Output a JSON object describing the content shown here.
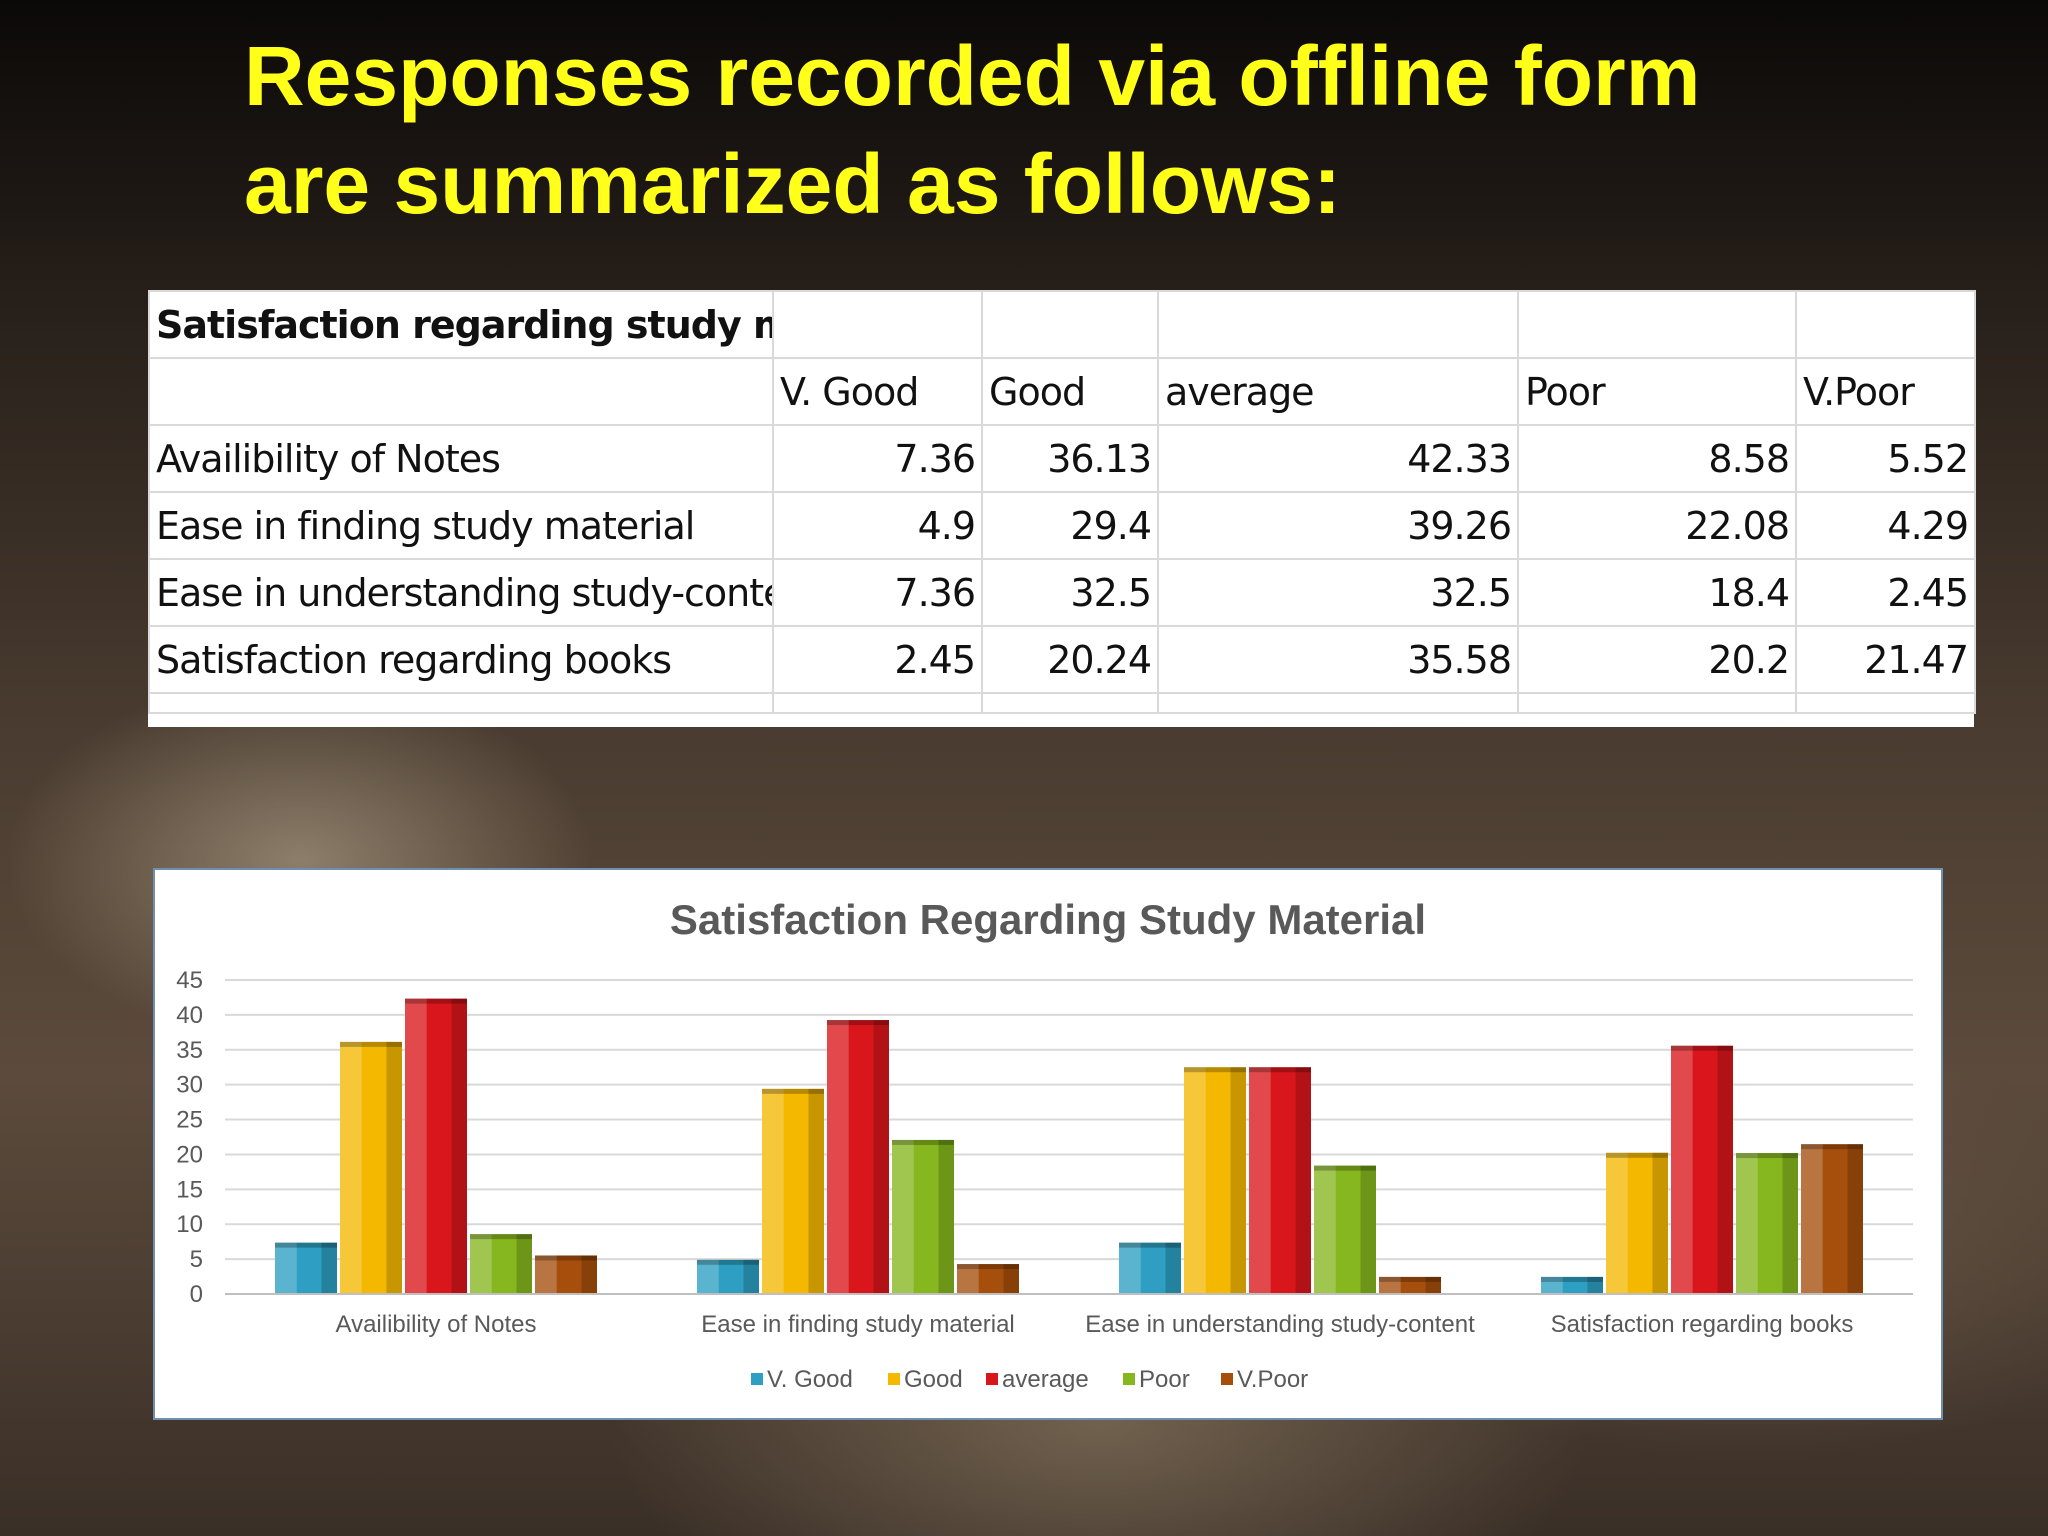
{
  "slide": {
    "title_line1": "Responses recorded via offline form",
    "title_line2": "are summarized as follows:"
  },
  "table": {
    "title": "Satisfaction regarding study material",
    "columns": [
      "V. Good",
      "Good",
      "average",
      "Poor",
      "V.Poor"
    ],
    "rows": [
      {
        "label": "Availibility of Notes",
        "values": [
          "7.36",
          "36.13",
          "42.33",
          "8.58",
          "5.52"
        ]
      },
      {
        "label": "Ease in finding study material",
        "values": [
          "4.9",
          "29.4",
          "39.26",
          "22.08",
          "4.29"
        ]
      },
      {
        "label": "Ease in understanding study-content",
        "values": [
          "7.36",
          "32.5",
          "32.5",
          "18.4",
          "2.45"
        ]
      },
      {
        "label": "Satisfaction regarding books",
        "values": [
          "2.45",
          "20.24",
          "35.58",
          "20.2",
          "21.47"
        ]
      }
    ]
  },
  "chart_data": {
    "type": "bar",
    "title": "Satisfaction Regarding Study Material",
    "categories": [
      "Availibility of Notes",
      "Ease in finding study material",
      "Ease in understanding study-content",
      "Satisfaction regarding books"
    ],
    "series": [
      {
        "name": "V. Good",
        "color": "#2e9fc2",
        "values": [
          7.36,
          4.9,
          7.36,
          2.45
        ]
      },
      {
        "name": "Good",
        "color": "#f4b800",
        "values": [
          36.13,
          29.4,
          32.5,
          20.24
        ]
      },
      {
        "name": "average",
        "color": "#d9161c",
        "values": [
          42.33,
          39.26,
          32.5,
          35.58
        ]
      },
      {
        "name": "Poor",
        "color": "#86b71f",
        "values": [
          8.58,
          22.08,
          18.4,
          20.2
        ]
      },
      {
        "name": "V.Poor",
        "color": "#a64f0c",
        "values": [
          5.52,
          4.29,
          2.45,
          21.47
        ]
      }
    ],
    "ylim": [
      0,
      45
    ],
    "yticks": [
      0,
      5,
      10,
      15,
      20,
      25,
      30,
      35,
      40,
      45
    ],
    "grid": true,
    "legend": "bottom"
  }
}
